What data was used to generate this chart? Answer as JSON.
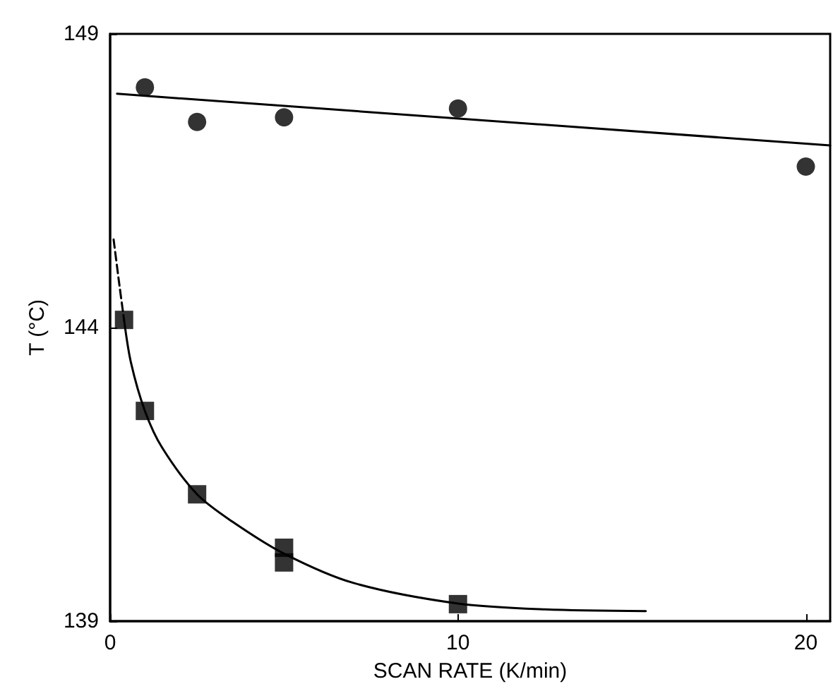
{
  "chart_data": {
    "type": "scatter",
    "xlabel": "SCAN RATE (K/min)",
    "ylabel": "T (°C)",
    "xlim": [
      0,
      20.7
    ],
    "xticks": [
      0,
      10,
      20
    ],
    "ylim": [
      139,
      149
    ],
    "yticks": [
      139,
      144,
      149
    ],
    "grid": false,
    "series": [
      {
        "marker": "circle",
        "color": "#000000",
        "x": [
          1,
          2.5,
          5,
          10,
          20
        ],
        "values": [
          148.09,
          147.5,
          147.58,
          147.73,
          146.74
        ]
      },
      {
        "type": "line",
        "line_style": "solid",
        "marker": "none",
        "color": "#000000",
        "x": [
          0.2,
          20.7
        ],
        "values": [
          147.98,
          147.1
        ]
      },
      {
        "marker": "square",
        "color": "#000000",
        "x": [
          0.4,
          1,
          2.5,
          5,
          5,
          10
        ],
        "values": [
          144.13,
          142.58,
          141.16,
          140.25,
          140.0,
          139.29
        ]
      },
      {
        "type": "line",
        "line_style": "solid",
        "marker": "none",
        "color": "#000000",
        "x": [
          0.4,
          0.6,
          1,
          1.5,
          2.5,
          3.5,
          5,
          7,
          10,
          12.5,
          15.4
        ],
        "values": [
          144.13,
          143.4,
          142.58,
          141.95,
          141.16,
          140.7,
          140.15,
          139.65,
          139.3,
          139.2,
          139.17
        ]
      },
      {
        "type": "line",
        "line_style": "dashed",
        "marker": "none",
        "color": "#000000",
        "x": [
          0.1,
          0.25,
          0.4
        ],
        "values": [
          145.5,
          144.8,
          144.13
        ]
      }
    ]
  }
}
